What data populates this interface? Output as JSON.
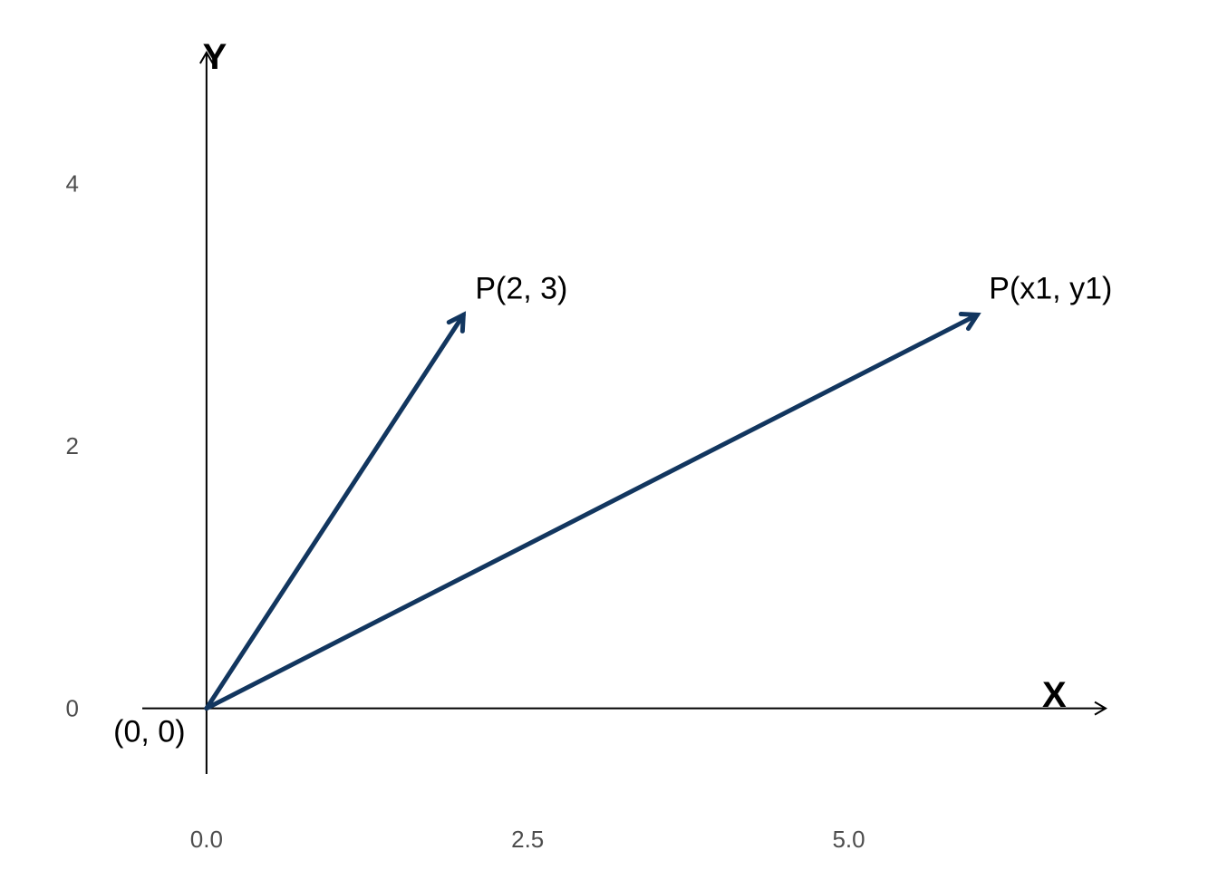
{
  "chart_data": {
    "type": "vector",
    "xlabel": "X",
    "ylabel": "Y",
    "xlim": [
      -0.5,
      7
    ],
    "ylim": [
      -0.5,
      5
    ],
    "x_ticks": [
      "0.0",
      "2.5",
      "5.0"
    ],
    "y_ticks": [
      "0",
      "2",
      "4"
    ],
    "grid": false,
    "vector_color": "#12365f",
    "origin": {
      "x": 0,
      "y": 0,
      "label": "(0, 0)"
    },
    "vectors": [
      {
        "x": 2,
        "y": 3,
        "label": "P(2, 3)"
      },
      {
        "x": 6,
        "y": 3,
        "label": "P(x1, y1)"
      }
    ]
  }
}
